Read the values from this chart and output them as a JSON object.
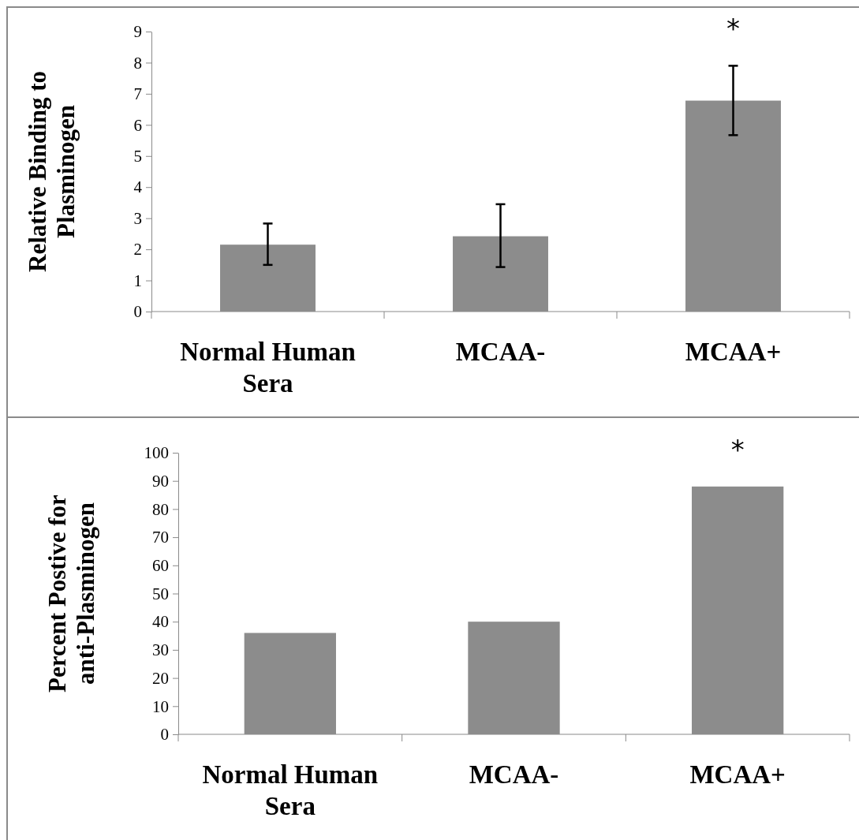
{
  "chart_data": [
    {
      "type": "bar",
      "ylabel": "Relative Binding to Plasminogen",
      "categories": [
        "Normal Human Sera",
        "MCAA-",
        "MCAA+"
      ],
      "values": [
        2.15,
        2.42,
        6.78
      ],
      "errors": [
        [
          1.5,
          2.83
        ],
        [
          1.43,
          3.45
        ],
        [
          5.67,
          7.9
        ]
      ],
      "color": "#8c8c8c",
      "ylim": [
        0,
        9
      ],
      "yticks": [
        0,
        1,
        2,
        3,
        4,
        5,
        6,
        7,
        8,
        9
      ],
      "annotations": [
        "*"
      ]
    },
    {
      "type": "bar",
      "ylabel": "Percent Postive for anti-Plasminogen",
      "categories": [
        "Normal Human Sera",
        "MCAA-",
        "MCAA+"
      ],
      "values": [
        36,
        40,
        88
      ],
      "color": "#8c8c8c",
      "ylim": [
        0,
        100
      ],
      "yticks": [
        0,
        10,
        20,
        30,
        40,
        50,
        60,
        70,
        80,
        90,
        100
      ],
      "annotations": [
        "*"
      ]
    }
  ]
}
